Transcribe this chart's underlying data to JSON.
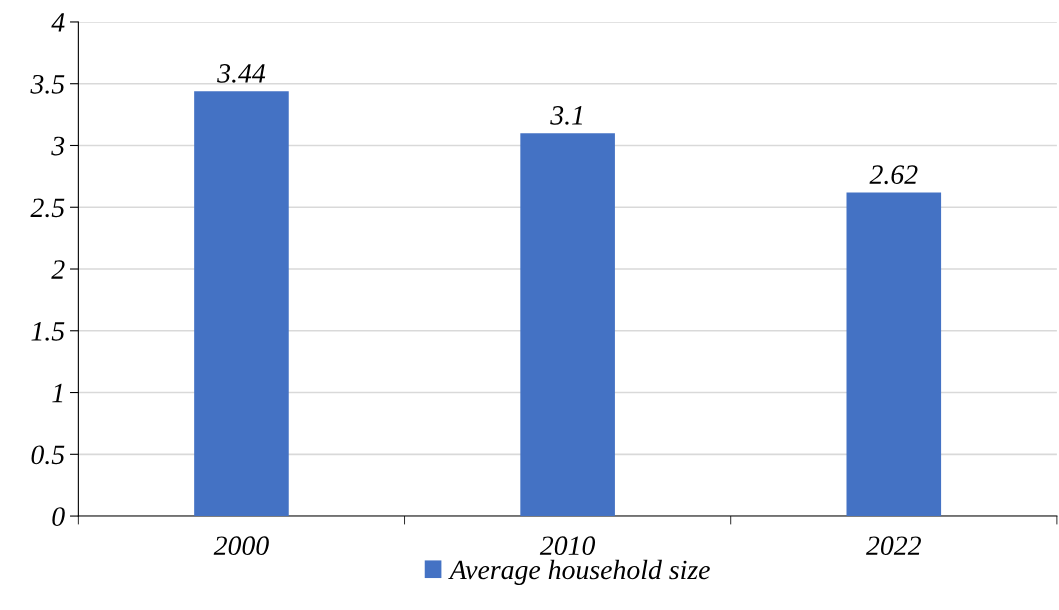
{
  "chart_data": {
    "type": "bar",
    "categories": [
      "2000",
      "2010",
      "2022"
    ],
    "series": [
      {
        "name": "Average household size",
        "color": "#4472c4",
        "values": [
          3.44,
          3.1,
          2.62
        ]
      }
    ],
    "ylim": [
      0,
      4
    ],
    "yticks": [
      0,
      0.5,
      1,
      1.5,
      2,
      2.5,
      3,
      3.5,
      4
    ],
    "grid": "y",
    "legend": "bottom",
    "data_labels": true
  }
}
